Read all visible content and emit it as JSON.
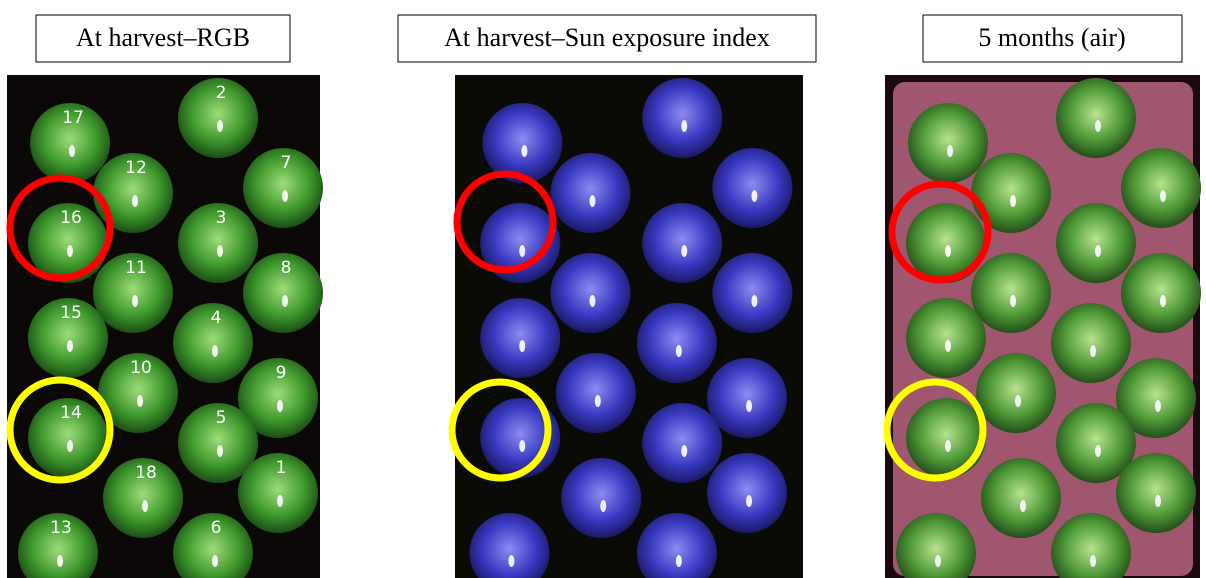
{
  "panels": [
    {
      "title": "At harvest–RGB",
      "apple_labels": [
        "17",
        "2",
        "12",
        "7",
        "16",
        "3",
        "11",
        "8",
        "15",
        "4",
        "10",
        "9",
        "14",
        "5",
        "18",
        "1",
        "13",
        "6"
      ]
    },
    {
      "title": "At harvest–Sun exposure index"
    },
    {
      "title": "5 months (air)"
    }
  ]
}
